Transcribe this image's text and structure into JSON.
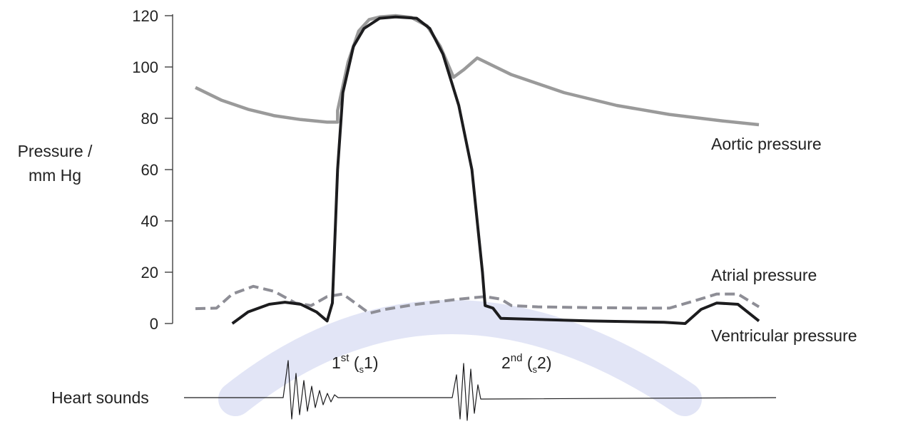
{
  "chart_data": {
    "type": "line",
    "ylabel": [
      "Pressure /",
      "mm Hg"
    ],
    "y_ticks": [
      0,
      20,
      40,
      60,
      80,
      100,
      120
    ],
    "ylim": [
      0,
      120
    ],
    "colors": {
      "aortic": "#9a9a9a",
      "atrial": "#8e8e96",
      "ventricular": "#1c1c1e",
      "heart_sounds": "#1c1c1e",
      "axis": "#333333",
      "watermark": "#d8dcf3"
    },
    "series": [
      {
        "name": "Aortic pressure",
        "points": [
          [
            0.0,
            92
          ],
          [
            0.05,
            87
          ],
          [
            0.1,
            83.5
          ],
          [
            0.15,
            81
          ],
          [
            0.2,
            79.5
          ],
          [
            0.25,
            78.5
          ],
          [
            0.27,
            78.5
          ],
          [
            0.27,
            83
          ],
          [
            0.29,
            102
          ],
          [
            0.31,
            114
          ],
          [
            0.33,
            118.5
          ],
          [
            0.35,
            119.5
          ],
          [
            0.38,
            120
          ],
          [
            0.41,
            119.3
          ],
          [
            0.44,
            116
          ],
          [
            0.465,
            108
          ],
          [
            0.49,
            96
          ],
          [
            0.51,
            99
          ],
          [
            0.535,
            103.5
          ],
          [
            0.6,
            97
          ],
          [
            0.7,
            90
          ],
          [
            0.8,
            85
          ],
          [
            0.9,
            81.5
          ],
          [
            1.0,
            79
          ],
          [
            1.07,
            77.5
          ]
        ]
      },
      {
        "name": "Atrial pressure",
        "points": [
          [
            0.0,
            5.8
          ],
          [
            0.04,
            6
          ],
          [
            0.07,
            11.5
          ],
          [
            0.11,
            14.5
          ],
          [
            0.15,
            12.5
          ],
          [
            0.19,
            8
          ],
          [
            0.22,
            7
          ],
          [
            0.25,
            10.5
          ],
          [
            0.28,
            11.5
          ],
          [
            0.31,
            7
          ],
          [
            0.33,
            4
          ],
          [
            0.36,
            5.5
          ],
          [
            0.42,
            7.5
          ],
          [
            0.5,
            9.5
          ],
          [
            0.55,
            10.5
          ],
          [
            0.58,
            9.5
          ],
          [
            0.6,
            7
          ],
          [
            0.65,
            6.5
          ],
          [
            0.75,
            6.2
          ],
          [
            0.85,
            6
          ],
          [
            0.9,
            6
          ],
          [
            0.95,
            9
          ],
          [
            0.99,
            11.5
          ],
          [
            1.03,
            11.5
          ],
          [
            1.07,
            6.5
          ]
        ]
      },
      {
        "name": "Ventricular pressure",
        "points": [
          [
            0.07,
            0
          ],
          [
            0.1,
            4.5
          ],
          [
            0.14,
            7.5
          ],
          [
            0.17,
            8.3
          ],
          [
            0.2,
            7.5
          ],
          [
            0.23,
            4.5
          ],
          [
            0.25,
            1
          ],
          [
            0.26,
            8
          ],
          [
            0.27,
            60
          ],
          [
            0.28,
            90
          ],
          [
            0.3,
            108
          ],
          [
            0.32,
            115
          ],
          [
            0.35,
            119
          ],
          [
            0.38,
            119.5
          ],
          [
            0.42,
            119
          ],
          [
            0.445,
            115
          ],
          [
            0.47,
            105
          ],
          [
            0.5,
            85
          ],
          [
            0.525,
            60
          ],
          [
            0.545,
            20
          ],
          [
            0.55,
            7
          ],
          [
            0.565,
            6
          ],
          [
            0.58,
            2
          ],
          [
            0.75,
            1
          ],
          [
            0.89,
            0.5
          ],
          [
            0.93,
            0
          ],
          [
            0.96,
            5.5
          ],
          [
            0.99,
            8
          ],
          [
            1.03,
            7.5
          ],
          [
            1.07,
            1
          ]
        ]
      }
    ],
    "annotations": [
      "Aortic pressure",
      "Atrial pressure",
      "Ventricular pressure",
      "Heart sounds"
    ],
    "heart_sounds": {
      "label": "Heart sounds",
      "first": {
        "main": "1",
        "sup": "st",
        "open": " (",
        "sub": "s",
        "num": "1",
        "close": ")"
      },
      "second": {
        "main": "2",
        "sup": "nd",
        "open": " (",
        "sub": "s",
        "num": "2",
        "close": ")"
      }
    },
    "grid": false
  }
}
